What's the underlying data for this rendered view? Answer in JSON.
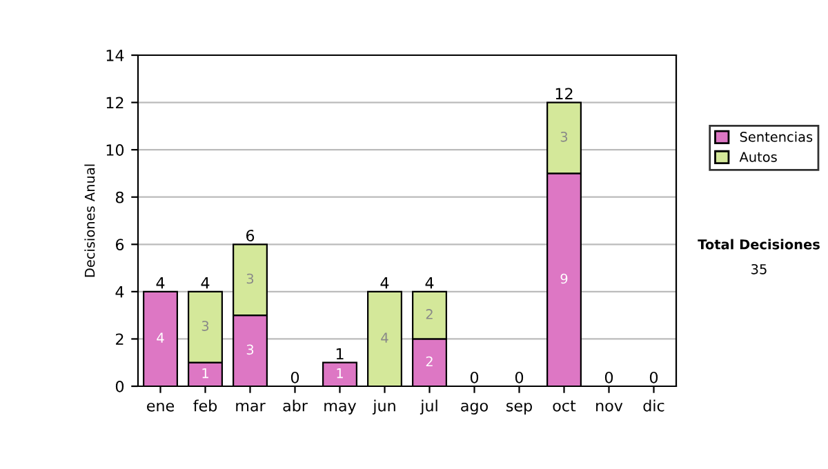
{
  "chart_data": {
    "type": "bar",
    "stacked": true,
    "ylabel": "Decisiones Anual",
    "categories": [
      "ene",
      "feb",
      "mar",
      "abr",
      "may",
      "jun",
      "jul",
      "ago",
      "sep",
      "oct",
      "nov",
      "dic"
    ],
    "series": [
      {
        "name": "Sentencias",
        "color": "#dd77c4",
        "values": [
          4,
          1,
          3,
          0,
          1,
          0,
          2,
          0,
          0,
          9,
          0,
          0
        ],
        "value_labels": [
          "4",
          "1",
          "3",
          null,
          "1",
          null,
          "2",
          null,
          null,
          "9",
          null,
          null
        ]
      },
      {
        "name": "Autos",
        "color": "#d4e89a",
        "values": [
          0,
          3,
          3,
          0,
          0,
          4,
          2,
          0,
          0,
          3,
          0,
          0
        ],
        "value_labels": [
          null,
          "3",
          "3",
          null,
          null,
          "4",
          "2",
          null,
          null,
          "3",
          null,
          null
        ]
      }
    ],
    "totals": [
      "4",
      "4",
      "6",
      "0",
      "1",
      "4",
      "4",
      "0",
      "0",
      "12",
      "0",
      "0"
    ],
    "ylim": [
      0,
      14
    ],
    "yticks": [
      0,
      2,
      4,
      6,
      8,
      10,
      12,
      14
    ],
    "grid": "y",
    "legend": "right",
    "annotations": [
      "Total Decisiones",
      "35"
    ]
  }
}
